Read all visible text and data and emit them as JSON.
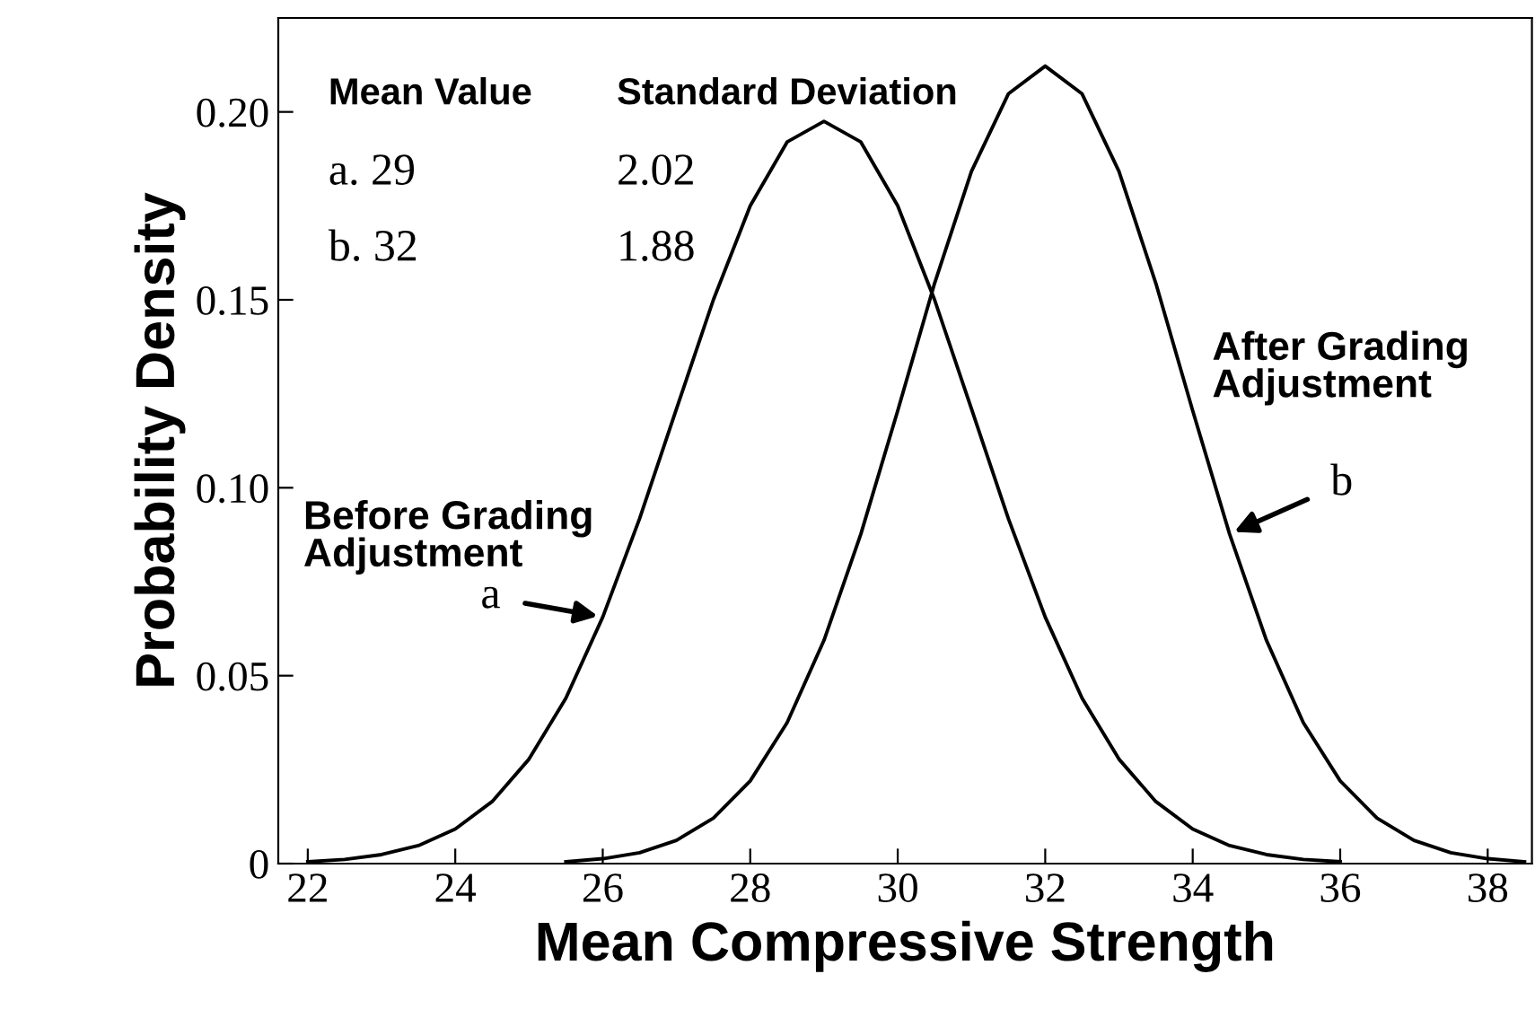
{
  "chart_data": {
    "type": "line",
    "xlabel": "Mean Compressive Strength",
    "ylabel": "Probability Density",
    "xlim": [
      21.6,
      38.6
    ],
    "xticks": [
      22,
      24,
      26,
      28,
      30,
      32,
      34,
      36,
      38
    ],
    "ylim": [
      0,
      0.225
    ],
    "yticks": [
      0,
      0.05,
      {
        "value": 0.1,
        "label": "0.10"
      },
      0.15,
      {
        "value": 0.2,
        "label": "0.20"
      }
    ],
    "grid": false,
    "marker": "none",
    "line_style": "solid",
    "series": [
      {
        "name": "a",
        "color": "#000000",
        "x": [
          22,
          22.5,
          23,
          23.5,
          24,
          24.5,
          25,
          25.5,
          26,
          26.5,
          27,
          27.5,
          28,
          28.5,
          29,
          29.5,
          30,
          30.5,
          31,
          31.5,
          32,
          32.5,
          33,
          33.5,
          34,
          34.5,
          35,
          35.5,
          36
        ],
        "values": [
          0.0005,
          0.0011,
          0.0024,
          0.0048,
          0.0092,
          0.0165,
          0.0278,
          0.044,
          0.0656,
          0.0918,
          0.121,
          0.15,
          0.175,
          0.192,
          0.1975,
          0.192,
          0.175,
          0.15,
          0.121,
          0.0918,
          0.0656,
          0.044,
          0.0278,
          0.0165,
          0.0092,
          0.0048,
          0.0024,
          0.0011,
          0.0005
        ]
      },
      {
        "name": "b",
        "color": "#000000",
        "x": [
          25.5,
          26,
          26.5,
          27,
          27.5,
          28,
          28.5,
          29,
          29.5,
          30,
          30.5,
          31,
          31.5,
          32,
          32.5,
          33,
          33.5,
          34,
          34.5,
          35,
          35.5,
          36,
          36.5,
          37,
          37.5,
          38,
          38.5
        ],
        "values": [
          0.0005,
          0.0013,
          0.0029,
          0.0062,
          0.0121,
          0.022,
          0.0375,
          0.0594,
          0.0877,
          0.1205,
          0.1544,
          0.1842,
          0.2048,
          0.2122,
          0.2048,
          0.1842,
          0.1544,
          0.1205,
          0.0877,
          0.0594,
          0.0375,
          0.022,
          0.0121,
          0.0062,
          0.0029,
          0.0013,
          0.0005
        ]
      }
    ],
    "annotations": [
      "Mean Value",
      "Standard Deviation",
      "a. 29",
      "2.02",
      "b. 32",
      "1.88",
      "Before Grading\nAdjustment",
      "After Grading\nAdjustment"
    ]
  }
}
